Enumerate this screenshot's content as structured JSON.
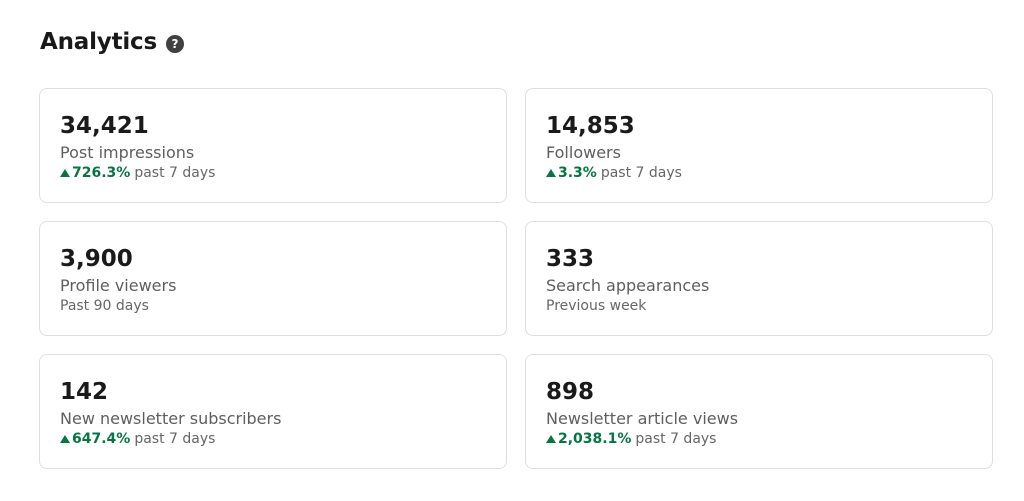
{
  "header": {
    "title": "Analytics",
    "help_glyph": "?"
  },
  "colors": {
    "trend_positive": "#057642",
    "card_border": "#dfdfdf"
  },
  "cards": [
    {
      "value": "34,421",
      "label": "Post impressions",
      "trend": "726.3%",
      "period": "past 7 days"
    },
    {
      "value": "14,853",
      "label": "Followers",
      "trend": "3.3%",
      "period": "past 7 days"
    },
    {
      "value": "3,900",
      "label": "Profile viewers",
      "trend": "",
      "period": "Past 90 days"
    },
    {
      "value": "333",
      "label": "Search appearances",
      "trend": "",
      "period": "Previous week"
    },
    {
      "value": "142",
      "label": "New newsletter subscribers",
      "trend": "647.4%",
      "period": "past 7 days"
    },
    {
      "value": "898",
      "label": "Newsletter article views",
      "trend": "2,038.1%",
      "period": "past 7 days"
    }
  ]
}
